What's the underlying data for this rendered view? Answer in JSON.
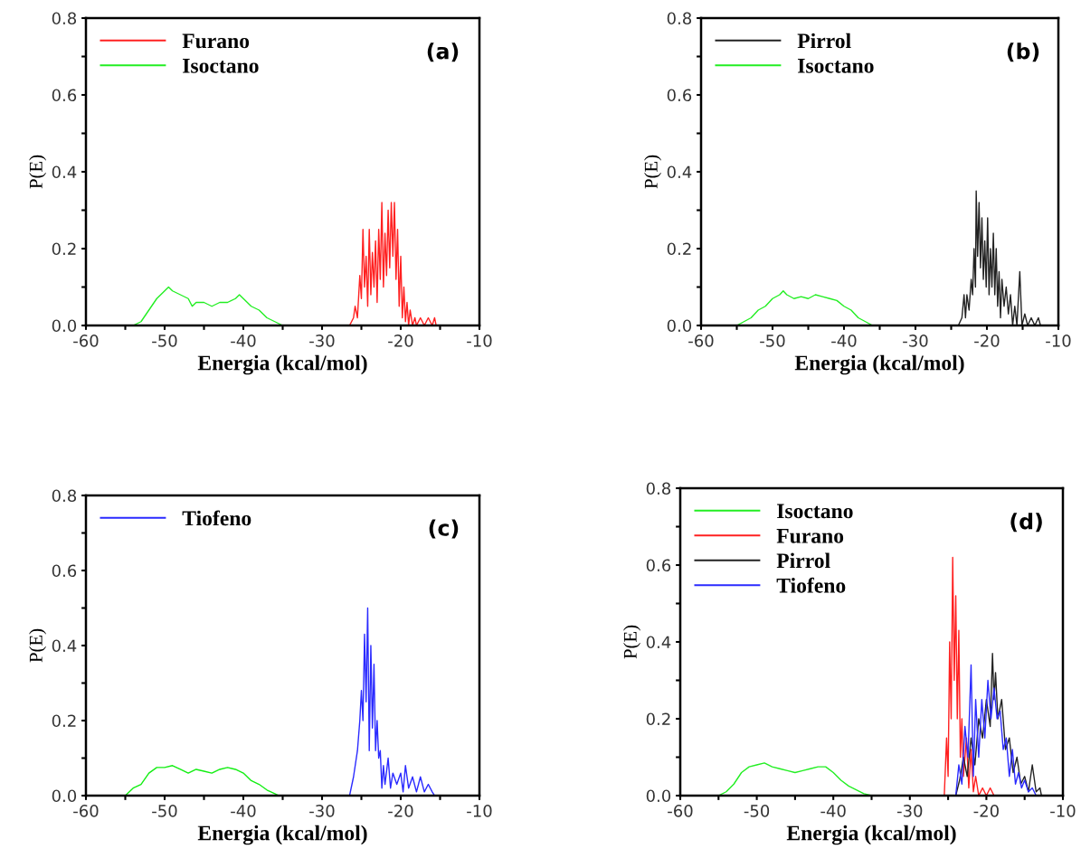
{
  "chart_data": [
    {
      "type": "line",
      "xlabel": "Energia (kcal/mol)",
      "ylabel": "P(E)",
      "annotations": [
        "(a)"
      ],
      "legend": "top left",
      "grid": false,
      "xlim": [
        -60,
        -10
      ],
      "ylim": [
        0,
        0.8
      ],
      "xticks": [
        -60,
        {
          "value": -55,
          "label": null
        },
        -50,
        {
          "value": -45,
          "label": null
        },
        -40,
        {
          "value": -35,
          "label": null
        },
        -30,
        {
          "value": -25,
          "label": null
        },
        -20,
        {
          "value": -15,
          "label": null
        },
        -10
      ],
      "yticks": [
        {
          "value": 0,
          "label": "0.0"
        },
        {
          "value": 0.1,
          "label": null
        },
        {
          "value": 0.2,
          "label": "0.2"
        },
        {
          "value": 0.3,
          "label": null
        },
        {
          "value": 0.4,
          "label": "0.4"
        },
        {
          "value": 0.5,
          "label": null
        },
        {
          "value": 0.6,
          "label": "0.6"
        },
        {
          "value": 0.7,
          "label": null
        },
        {
          "value": 0.8,
          "label": "0.8"
        }
      ],
      "series": [
        {
          "name": "Furano",
          "color": "#ff2020",
          "x": [
            -26.5,
            -26,
            -25.8,
            -25.5,
            -25.2,
            -25,
            -24.8,
            -24.6,
            -24.4,
            -24.2,
            -24,
            -23.8,
            -23.6,
            -23.4,
            -23.2,
            -23,
            -22.8,
            -22.6,
            -22.4,
            -22.2,
            -22,
            -21.8,
            -21.6,
            -21.4,
            -21.2,
            -21,
            -20.8,
            -20.6,
            -20.4,
            -20.2,
            -20,
            -19.8,
            -19.6,
            -19.4,
            -19.2,
            -19,
            -18.8,
            -18.5,
            -18.2,
            -18,
            -17.5,
            -17,
            -16.5,
            -16,
            -15.7,
            -15.5
          ],
          "values": [
            0,
            0.02,
            0.05,
            0.02,
            0.13,
            0.07,
            0.25,
            0.1,
            0.18,
            0.05,
            0.25,
            0.08,
            0.19,
            0.1,
            0.22,
            0.06,
            0.25,
            0.12,
            0.32,
            0.1,
            0.24,
            0.13,
            0.3,
            0.15,
            0.32,
            0.18,
            0.32,
            0.12,
            0.25,
            0.05,
            0.18,
            0.02,
            0.1,
            0.01,
            0.06,
            0,
            0.04,
            0,
            0.02,
            0,
            0.02,
            0,
            0.02,
            0,
            0.02,
            0
          ]
        },
        {
          "name": "Isoctano",
          "color": "#22ee22",
          "x": [
            -55,
            -54,
            -53,
            -52,
            -51,
            -50,
            -49.5,
            -49,
            -48,
            -47,
            -46.5,
            -46,
            -45,
            -44,
            -43,
            -42,
            -41,
            -40.5,
            -40,
            -39,
            -38,
            -37,
            -36,
            -35,
            -34,
            -33
          ],
          "values": [
            0,
            0,
            0.01,
            0.04,
            0.07,
            0.09,
            0.1,
            0.09,
            0.08,
            0.07,
            0.05,
            0.06,
            0.06,
            0.05,
            0.06,
            0.06,
            0.07,
            0.08,
            0.07,
            0.05,
            0.04,
            0.02,
            0.01,
            0,
            0,
            0
          ]
        }
      ]
    },
    {
      "type": "line",
      "xlabel": "Energia (kcal/mol)",
      "ylabel": "P(E)",
      "annotations": [
        "(b)"
      ],
      "legend": "top left",
      "grid": false,
      "xlim": [
        -60,
        -10
      ],
      "ylim": [
        0,
        0.8
      ],
      "xticks": [
        -60,
        {
          "value": -55,
          "label": null
        },
        -50,
        {
          "value": -45,
          "label": null
        },
        -40,
        {
          "value": -35,
          "label": null
        },
        -30,
        {
          "value": -25,
          "label": null
        },
        -20,
        {
          "value": -15,
          "label": null
        },
        -10
      ],
      "yticks": [
        {
          "value": 0,
          "label": "0.0"
        },
        {
          "value": 0.1,
          "label": null
        },
        {
          "value": 0.2,
          "label": "0.2"
        },
        {
          "value": 0.3,
          "label": null
        },
        {
          "value": 0.4,
          "label": "0.4"
        },
        {
          "value": 0.5,
          "label": null
        },
        {
          "value": 0.6,
          "label": "0.6"
        },
        {
          "value": 0.7,
          "label": null
        },
        {
          "value": 0.8,
          "label": "0.8"
        }
      ],
      "series": [
        {
          "name": "Pirrol",
          "color": "#222222",
          "x": [
            -24,
            -23.5,
            -23.2,
            -23,
            -22.8,
            -22.5,
            -22.2,
            -22,
            -21.8,
            -21.6,
            -21.5,
            -21.3,
            -21.1,
            -20.9,
            -20.7,
            -20.5,
            -20.3,
            -20.1,
            -19.9,
            -19.7,
            -19.5,
            -19.3,
            -19.1,
            -18.9,
            -18.7,
            -18.5,
            -18.3,
            -18.1,
            -17.9,
            -17.6,
            -17.3,
            -17,
            -16.7,
            -16.4,
            -16.1,
            -15.8,
            -15.4,
            -15.1,
            -14.7,
            -14.3,
            -13.8,
            -13.3,
            -12.8,
            -12.5
          ],
          "values": [
            0,
            0.02,
            0.08,
            0.02,
            0.08,
            0.04,
            0.12,
            0.08,
            0.2,
            0.1,
            0.35,
            0.18,
            0.32,
            0.15,
            0.28,
            0.12,
            0.22,
            0.1,
            0.28,
            0.08,
            0.2,
            0.1,
            0.24,
            0.08,
            0.2,
            0.05,
            0.14,
            0.02,
            0.12,
            0.05,
            0.1,
            0.03,
            0.08,
            0,
            0.05,
            0,
            0.14,
            0,
            0.03,
            0,
            0.02,
            0,
            0.02,
            0
          ]
        },
        {
          "name": "Isoctano",
          "color": "#22ee22",
          "x": [
            -57,
            -55,
            -54,
            -53,
            -52,
            -51,
            -50,
            -49,
            -48.5,
            -48,
            -47,
            -46,
            -45,
            -44,
            -43,
            -42,
            -41,
            -40,
            -39,
            -38,
            -37,
            -36,
            -35,
            -33
          ],
          "values": [
            0,
            0,
            0.01,
            0.02,
            0.04,
            0.05,
            0.07,
            0.08,
            0.09,
            0.08,
            0.07,
            0.075,
            0.07,
            0.08,
            0.075,
            0.07,
            0.065,
            0.05,
            0.04,
            0.02,
            0.01,
            0,
            0,
            0
          ]
        }
      ]
    },
    {
      "type": "line",
      "xlabel": "Energia (kcal/mol)",
      "ylabel": "P(E)",
      "annotations": [
        "(c)"
      ],
      "legend": "top left",
      "grid": false,
      "xlim": [
        -60,
        -10
      ],
      "ylim": [
        0,
        0.8
      ],
      "xticks": [
        -60,
        {
          "value": -55,
          "label": null
        },
        -50,
        {
          "value": -45,
          "label": null
        },
        -40,
        {
          "value": -35,
          "label": null
        },
        -30,
        {
          "value": -25,
          "label": null
        },
        -20,
        {
          "value": -15,
          "label": null
        },
        -10
      ],
      "yticks": [
        {
          "value": 0,
          "label": "0.0"
        },
        {
          "value": 0.1,
          "label": null
        },
        {
          "value": 0.2,
          "label": "0.2"
        },
        {
          "value": 0.3,
          "label": null
        },
        {
          "value": 0.4,
          "label": "0.4"
        },
        {
          "value": 0.5,
          "label": null
        },
        {
          "value": 0.6,
          "label": "0.6"
        },
        {
          "value": 0.7,
          "label": null
        },
        {
          "value": 0.8,
          "label": "0.8"
        }
      ],
      "series": [
        {
          "name": "Tiofeno",
          "color": "#2a2aff",
          "x": [
            -26.5,
            -26,
            -25.5,
            -25.2,
            -25,
            -24.8,
            -24.6,
            -24.4,
            -24.2,
            -24,
            -23.8,
            -23.6,
            -23.4,
            -23.2,
            -23,
            -22.8,
            -22.6,
            -22.4,
            -22.2,
            -22,
            -21.6,
            -21.3,
            -21,
            -20.5,
            -20,
            -19.7,
            -19.4,
            -19,
            -18.5,
            -18,
            -17.5,
            -17,
            -16.5,
            -16,
            -15.7
          ],
          "values": [
            0,
            0.05,
            0.12,
            0.2,
            0.28,
            0.2,
            0.43,
            0.25,
            0.5,
            0.12,
            0.4,
            0.18,
            0.35,
            0.12,
            0.2,
            0.1,
            0.12,
            0.02,
            0.08,
            0.03,
            0.1,
            0.02,
            0.06,
            0.03,
            0.06,
            0.01,
            0.08,
            0.02,
            0.05,
            0.01,
            0.05,
            0.01,
            0.03,
            0.01,
            0
          ]
        },
        {
          "color": "#11ee11",
          "x": [
            -55,
            -54,
            -53,
            -52,
            -51,
            -50,
            -49,
            -48,
            -47,
            -46,
            -45,
            -44,
            -43,
            -42,
            -41,
            -40,
            -39,
            -38,
            -37,
            -36,
            -35.5
          ],
          "values": [
            0,
            0.02,
            0.03,
            0.06,
            0.075,
            0.075,
            0.08,
            0.07,
            0.06,
            0.07,
            0.065,
            0.06,
            0.07,
            0.075,
            0.07,
            0.06,
            0.04,
            0.03,
            0.015,
            0.005,
            0
          ]
        }
      ]
    },
    {
      "type": "line",
      "xlabel": "Energia (kcal/mol)",
      "ylabel": "P(E)",
      "annotations": [
        "(d)"
      ],
      "legend": "top left",
      "grid": false,
      "xlim": [
        -60,
        -10
      ],
      "ylim": [
        0,
        0.8
      ],
      "xticks": [
        -60,
        {
          "value": -55,
          "label": null
        },
        -50,
        {
          "value": -45,
          "label": null
        },
        -40,
        {
          "value": -35,
          "label": null
        },
        -30,
        {
          "value": -25,
          "label": null
        },
        -20,
        {
          "value": -15,
          "label": null
        },
        -10
      ],
      "yticks": [
        {
          "value": 0,
          "label": "0.0"
        },
        {
          "value": 0.1,
          "label": null
        },
        {
          "value": 0.2,
          "label": "0.2"
        },
        {
          "value": 0.3,
          "label": null
        },
        {
          "value": 0.4,
          "label": "0.4"
        },
        {
          "value": 0.5,
          "label": null
        },
        {
          "value": 0.6,
          "label": "0.6"
        },
        {
          "value": 0.7,
          "label": null
        },
        {
          "value": 0.8,
          "label": "0.8"
        }
      ],
      "series": [
        {
          "name": "Isoctano",
          "color": "#22ee22",
          "x": [
            -57,
            -55,
            -54,
            -53,
            -52,
            -51,
            -50,
            -49,
            -48,
            -47,
            -46,
            -45,
            -44,
            -43,
            -42,
            -41,
            -40,
            -39,
            -38,
            -37,
            -36,
            -35,
            -33
          ],
          "values": [
            0,
            0,
            0.01,
            0.03,
            0.06,
            0.075,
            0.08,
            0.085,
            0.075,
            0.07,
            0.065,
            0.06,
            0.065,
            0.07,
            0.075,
            0.075,
            0.06,
            0.04,
            0.025,
            0.015,
            0.005,
            0,
            0
          ]
        },
        {
          "name": "Furano",
          "color": "#ff2020",
          "x": [
            -25.5,
            -25.2,
            -25,
            -24.8,
            -24.6,
            -24.4,
            -24.2,
            -24,
            -23.8,
            -23.6,
            -23.4,
            -23.2,
            -23,
            -22.6,
            -22.3,
            -22,
            -21.7,
            -21.4,
            -21,
            -20.5,
            -20,
            -19.5,
            -19,
            -18.5
          ],
          "values": [
            0,
            0.15,
            0.05,
            0.4,
            0.2,
            0.62,
            0.3,
            0.52,
            0.2,
            0.43,
            0.1,
            0.2,
            0.05,
            0.15,
            0.02,
            0.12,
            0.01,
            0.05,
            0,
            0.02,
            0,
            0.02,
            0,
            0
          ]
        },
        {
          "name": "Pirrol",
          "color": "#222222",
          "x": [
            -24,
            -23.5,
            -23,
            -22.5,
            -22,
            -21.5,
            -21,
            -20.5,
            -20,
            -19.5,
            -19.2,
            -19,
            -18.8,
            -18.5,
            -18,
            -17.5,
            -17,
            -16.5,
            -16,
            -15.5,
            -15,
            -14.5,
            -14,
            -13.5,
            -13,
            -12.8
          ],
          "values": [
            0,
            0.04,
            0.1,
            0.05,
            0.15,
            0.08,
            0.2,
            0.15,
            0.25,
            0.18,
            0.37,
            0.25,
            0.32,
            0.2,
            0.25,
            0.12,
            0.15,
            0.06,
            0.1,
            0.03,
            0.05,
            0.01,
            0.08,
            0.01,
            0.02,
            0
          ]
        },
        {
          "name": "Tiofeno",
          "color": "#2a2aff",
          "x": [
            -24,
            -23.6,
            -23.2,
            -22.8,
            -22.4,
            -22,
            -21.7,
            -21.4,
            -21,
            -20.6,
            -20.2,
            -19.8,
            -19.4,
            -19,
            -18.6,
            -18.2,
            -17.8,
            -17.4,
            -17,
            -16.6,
            -16.2,
            -15.8,
            -15.4,
            -15,
            -14.5,
            -14,
            -13.5
          ],
          "values": [
            0,
            0.08,
            0.03,
            0.18,
            0.1,
            0.34,
            0.05,
            0.25,
            0.1,
            0.25,
            0.15,
            0.3,
            0.2,
            0.28,
            0.2,
            0.22,
            0.12,
            0.15,
            0.05,
            0.12,
            0.03,
            0.06,
            0.02,
            0.04,
            0.01,
            0.02,
            0
          ]
        }
      ]
    }
  ]
}
